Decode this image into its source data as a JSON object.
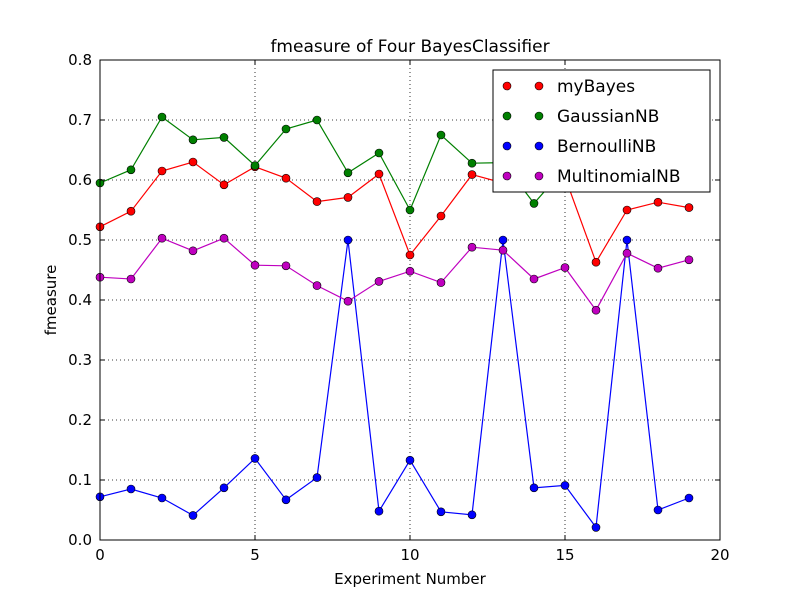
{
  "chart_data": {
    "type": "line",
    "title": "fmeasure of Four BayesClassifier",
    "xlabel": "Experiment Number",
    "ylabel": "fmeasure",
    "xlim": [
      0,
      20
    ],
    "ylim": [
      0.0,
      0.8
    ],
    "xticks": [
      0,
      5,
      10,
      15,
      20
    ],
    "yticks": [
      0.0,
      0.1,
      0.2,
      0.3,
      0.4,
      0.5,
      0.6,
      0.7,
      0.8
    ],
    "xtick_labels": [
      "0",
      "5",
      "10",
      "15",
      "20"
    ],
    "ytick_labels": [
      "0.0",
      "0.1",
      "0.2",
      "0.3",
      "0.4",
      "0.5",
      "0.6",
      "0.7",
      "0.8"
    ],
    "grid": true,
    "legend_position": "top-right",
    "x": [
      0,
      1,
      2,
      3,
      4,
      5,
      6,
      7,
      8,
      9,
      10,
      11,
      12,
      13,
      14,
      15,
      16,
      17,
      18,
      19
    ],
    "series": [
      {
        "name": "myBayes",
        "color": "#ff0000",
        "values": [
          0.522,
          0.548,
          0.615,
          0.63,
          0.592,
          0.622,
          0.603,
          0.564,
          0.571,
          0.61,
          0.475,
          0.54,
          0.609,
          0.595,
          0.6,
          0.605,
          0.463,
          0.55,
          0.563,
          0.554
        ]
      },
      {
        "name": "GaussianNB",
        "color": "#008000",
        "values": [
          0.595,
          0.617,
          0.705,
          0.667,
          0.671,
          0.624,
          0.685,
          0.7,
          0.612,
          0.645,
          0.55,
          0.675,
          0.628,
          0.629,
          0.561,
          0.62,
          0.6,
          0.59,
          0.595,
          0.6
        ]
      },
      {
        "name": "BernoulliNB",
        "color": "#0000ff",
        "values": [
          0.072,
          0.085,
          0.07,
          0.041,
          0.087,
          0.136,
          0.067,
          0.104,
          0.5,
          0.048,
          0.133,
          0.047,
          0.042,
          0.5,
          0.087,
          0.091,
          0.021,
          0.5,
          0.05,
          0.07
        ]
      },
      {
        "name": "MultinomialNB",
        "color": "#bf00bf",
        "values": [
          0.438,
          0.435,
          0.503,
          0.482,
          0.503,
          0.458,
          0.457,
          0.424,
          0.398,
          0.431,
          0.448,
          0.429,
          0.488,
          0.483,
          0.435,
          0.454,
          0.383,
          0.478,
          0.453,
          0.467
        ]
      }
    ]
  }
}
